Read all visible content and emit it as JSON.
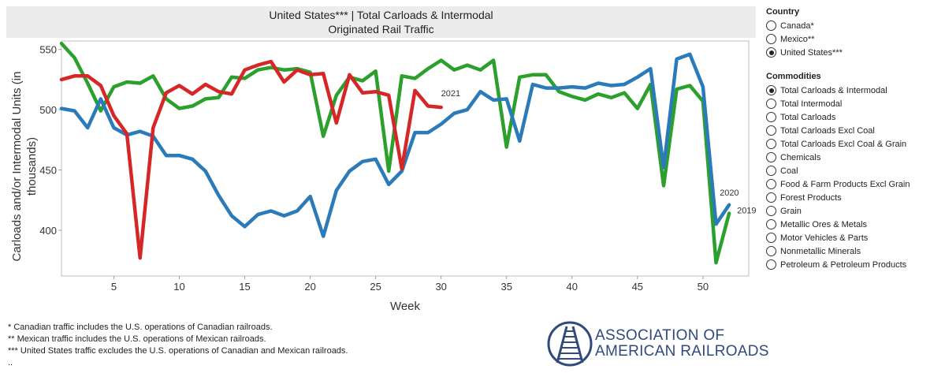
{
  "title": {
    "line1": "United States*** | Total Carloads & Intermodal",
    "line2": "Originated Rail Traffic"
  },
  "chart_data": {
    "type": "line",
    "xlabel": "Week",
    "ylabel": "Carloads and/or Intermodal Units (in thousands)",
    "xlim": [
      1,
      53.5
    ],
    "ylim": [
      362,
      557
    ],
    "x_ticks": [
      5,
      10,
      15,
      20,
      25,
      30,
      35,
      40,
      45,
      50
    ],
    "y_ticks": [
      400,
      450,
      500,
      550
    ],
    "grid": false,
    "series": [
      {
        "name": "2019",
        "color": "#2ca02c",
        "x": [
          1,
          2,
          3,
          4,
          5,
          6,
          7,
          8,
          9,
          10,
          11,
          12,
          13,
          14,
          15,
          16,
          17,
          18,
          19,
          20,
          21,
          22,
          23,
          24,
          25,
          26,
          27,
          28,
          29,
          30,
          31,
          32,
          33,
          34,
          35,
          36,
          37,
          38,
          39,
          40,
          41,
          42,
          43,
          44,
          45,
          46,
          47,
          48,
          49,
          50,
          51,
          52
        ],
        "values": [
          555,
          543,
          522,
          499,
          519,
          523,
          522,
          528,
          509,
          501,
          503,
          509,
          510,
          527,
          526,
          533,
          535,
          533,
          534,
          531,
          478,
          512,
          527,
          524,
          532,
          449,
          528,
          526,
          534,
          541,
          533,
          537,
          533,
          541,
          469,
          527,
          529,
          529,
          515,
          511,
          508,
          513,
          510,
          514,
          501,
          521,
          437,
          517,
          520,
          507,
          373,
          414
        ]
      },
      {
        "name": "2020",
        "color": "#2b7bba",
        "x": [
          1,
          2,
          3,
          4,
          5,
          6,
          7,
          8,
          9,
          10,
          11,
          12,
          13,
          14,
          15,
          16,
          17,
          18,
          19,
          20,
          21,
          22,
          23,
          24,
          25,
          26,
          27,
          28,
          29,
          30,
          31,
          32,
          33,
          34,
          35,
          36,
          37,
          38,
          39,
          40,
          41,
          42,
          43,
          44,
          45,
          46,
          47,
          48,
          49,
          50,
          51,
          52
        ],
        "values": [
          501,
          499,
          485,
          509,
          485,
          479,
          482,
          478,
          462,
          462,
          459,
          449,
          429,
          412,
          403,
          413,
          416,
          412,
          416,
          428,
          395,
          433,
          449,
          457,
          459,
          438,
          449,
          481,
          481,
          488,
          497,
          500,
          515,
          508,
          509,
          474,
          521,
          518,
          518,
          519,
          518,
          522,
          520,
          521,
          527,
          534,
          452,
          542,
          546,
          519,
          405,
          421
        ]
      },
      {
        "name": "2021",
        "color": "#d62728",
        "x": [
          1,
          2,
          3,
          4,
          5,
          6,
          7,
          8,
          9,
          10,
          11,
          12,
          13,
          14,
          15,
          16,
          17,
          18,
          19,
          20,
          21,
          22,
          23,
          24,
          25,
          26,
          27,
          28,
          29,
          30
        ],
        "values": [
          525,
          528,
          528,
          520,
          495,
          480,
          377,
          485,
          514,
          520,
          513,
          521,
          515,
          513,
          533,
          537,
          540,
          523,
          533,
          529,
          530,
          489,
          529,
          514,
          515,
          512,
          451,
          516,
          503,
          502
        ]
      }
    ],
    "annotations": [
      {
        "text": "2021",
        "x": 30,
        "y": 502
      },
      {
        "text": "2020",
        "x": 52,
        "y": 421
      },
      {
        "text": "2019",
        "x": 52,
        "y": 414
      }
    ]
  },
  "country_filter": {
    "title": "Country",
    "options": [
      {
        "label": "Canada*",
        "selected": false
      },
      {
        "label": "Mexico**",
        "selected": false
      },
      {
        "label": "United States***",
        "selected": true
      }
    ]
  },
  "commodities_filter": {
    "title": "Commodities",
    "options": [
      {
        "label": "Total Carloads & Intermodal",
        "selected": true
      },
      {
        "label": "Total Intermodal",
        "selected": false
      },
      {
        "label": "Total Carloads",
        "selected": false
      },
      {
        "label": "Total Carloads Excl Coal",
        "selected": false
      },
      {
        "label": "Total Carloads Excl Coal & Grain",
        "selected": false
      },
      {
        "label": "Chemicals",
        "selected": false
      },
      {
        "label": "Coal",
        "selected": false
      },
      {
        "label": "Food & Farm Products Excl Grain",
        "selected": false
      },
      {
        "label": "Forest Products",
        "selected": false
      },
      {
        "label": "Grain",
        "selected": false
      },
      {
        "label": "Metallic Ores & Metals",
        "selected": false
      },
      {
        "label": "Motor Vehicles & Parts",
        "selected": false
      },
      {
        "label": "Nonmetallic Minerals",
        "selected": false
      },
      {
        "label": "Petroleum & Petroleum Products",
        "selected": false
      }
    ]
  },
  "footnotes": [
    "* Canadian traffic includes the U.S. operations of Canadian railroads.",
    "** Mexican traffic includes the U.S. operations of Mexican railroads.",
    "*** United States traffic excludes the U.S. operations of Canadian and Mexican railroads.",
    ".."
  ],
  "logo": {
    "line1": "ASSOCIATION OF",
    "line2": "AMERICAN RAILROADS",
    "color": "#2f4a7d"
  }
}
